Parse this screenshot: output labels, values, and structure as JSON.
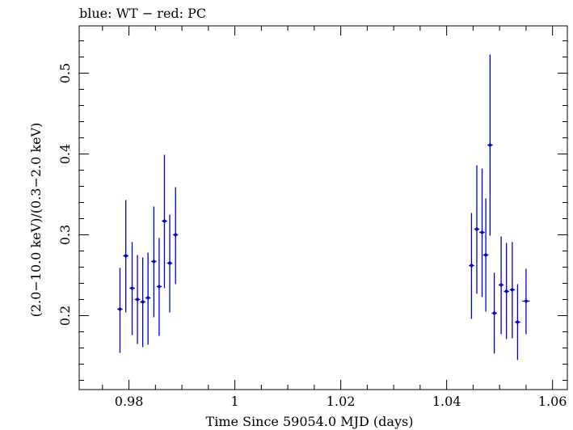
{
  "chart_data": {
    "type": "scatter",
    "title": "blue: WT − red: PC",
    "xlabel": "Time Since 59054.0 MJD (days)",
    "ylabel": "(2.0−10.0 keV)/(0.3−2.0 keV)",
    "xlim": [
      0.9706,
      1.0628
    ],
    "ylim": [
      0.1085,
      0.5585
    ],
    "x_ticks": [
      0.98,
      1.0,
      1.02,
      1.04,
      1.06
    ],
    "x_tick_labels": [
      "0.98",
      "1",
      "1.02",
      "1.04",
      "1.06"
    ],
    "y_ticks": [
      0.2,
      0.3,
      0.4,
      0.5
    ],
    "y_tick_labels": [
      "0.2",
      "0.3",
      "0.4",
      "0.5"
    ],
    "grid": false,
    "series": [
      {
        "name": "WT",
        "color": "#0000cc",
        "points": [
          {
            "x": 0.9783,
            "y": 0.208,
            "xerr": 0.0005,
            "ylo": 0.154,
            "yhi": 0.259
          },
          {
            "x": 0.9794,
            "y": 0.274,
            "xerr": 0.0005,
            "ylo": 0.204,
            "yhi": 0.343
          },
          {
            "x": 0.9806,
            "y": 0.234,
            "xerr": 0.0005,
            "ylo": 0.176,
            "yhi": 0.291
          },
          {
            "x": 0.9816,
            "y": 0.22,
            "xerr": 0.0005,
            "ylo": 0.165,
            "yhi": 0.275
          },
          {
            "x": 0.9826,
            "y": 0.217,
            "xerr": 0.0005,
            "ylo": 0.161,
            "yhi": 0.272
          },
          {
            "x": 0.9836,
            "y": 0.222,
            "xerr": 0.0005,
            "ylo": 0.164,
            "yhi": 0.278
          },
          {
            "x": 0.9847,
            "y": 0.267,
            "xerr": 0.0005,
            "ylo": 0.198,
            "yhi": 0.335
          },
          {
            "x": 0.9857,
            "y": 0.236,
            "xerr": 0.0005,
            "ylo": 0.175,
            "yhi": 0.296
          },
          {
            "x": 0.9867,
            "y": 0.317,
            "xerr": 0.0005,
            "ylo": 0.234,
            "yhi": 0.399
          },
          {
            "x": 0.9877,
            "y": 0.265,
            "xerr": 0.0005,
            "ylo": 0.204,
            "yhi": 0.325
          },
          {
            "x": 0.9888,
            "y": 0.3,
            "xerr": 0.0005,
            "ylo": 0.239,
            "yhi": 0.359
          },
          {
            "x": 1.0447,
            "y": 0.262,
            "xerr": 0.0005,
            "ylo": 0.196,
            "yhi": 0.327
          },
          {
            "x": 1.0457,
            "y": 0.307,
            "xerr": 0.0005,
            "ylo": 0.227,
            "yhi": 0.386
          },
          {
            "x": 1.0467,
            "y": 0.303,
            "xerr": 0.0005,
            "ylo": 0.223,
            "yhi": 0.382
          },
          {
            "x": 1.0474,
            "y": 0.275,
            "xerr": 0.0005,
            "ylo": 0.205,
            "yhi": 0.345
          },
          {
            "x": 1.0482,
            "y": 0.411,
            "xerr": 0.0005,
            "ylo": 0.299,
            "yhi": 0.523
          },
          {
            "x": 1.049,
            "y": 0.203,
            "xerr": 0.0005,
            "ylo": 0.153,
            "yhi": 0.253
          },
          {
            "x": 1.0503,
            "y": 0.238,
            "xerr": 0.0005,
            "ylo": 0.177,
            "yhi": 0.298
          },
          {
            "x": 1.0513,
            "y": 0.23,
            "xerr": 0.0005,
            "ylo": 0.171,
            "yhi": 0.29
          },
          {
            "x": 1.0524,
            "y": 0.232,
            "xerr": 0.0005,
            "ylo": 0.172,
            "yhi": 0.291
          },
          {
            "x": 1.0534,
            "y": 0.192,
            "xerr": 0.0005,
            "ylo": 0.145,
            "yhi": 0.239
          },
          {
            "x": 1.055,
            "y": 0.218,
            "xerr": 0.0007,
            "ylo": 0.177,
            "yhi": 0.258
          }
        ]
      }
    ]
  }
}
